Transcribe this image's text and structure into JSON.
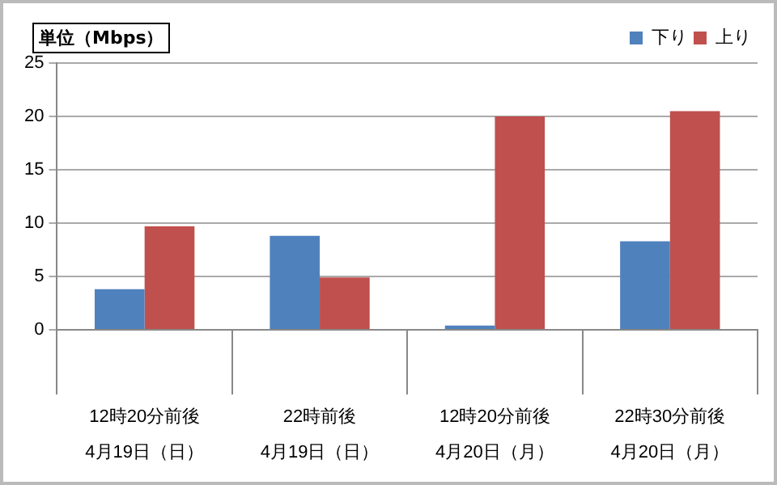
{
  "chart_data": {
    "type": "bar",
    "ylabel": "単位（Mbps）",
    "categories": [
      "12時20分前後\n4月19日（日）",
      "22時前後\n4月19日（日）",
      "12時20分前後\n4月20日（月）",
      "22時30分前後\n4月20日（月）"
    ],
    "series": [
      {
        "name": "下り",
        "color": "#4f81bd",
        "values": [
          3.8,
          8.8,
          0.4,
          8.3
        ]
      },
      {
        "name": "上り",
        "color": "#c0504d",
        "values": [
          9.7,
          4.9,
          20.0,
          20.5
        ]
      }
    ],
    "ylim": [
      0,
      25
    ],
    "yticks": [
      0,
      5,
      10,
      15,
      20,
      25
    ],
    "grid": "y",
    "legend": "top right"
  }
}
